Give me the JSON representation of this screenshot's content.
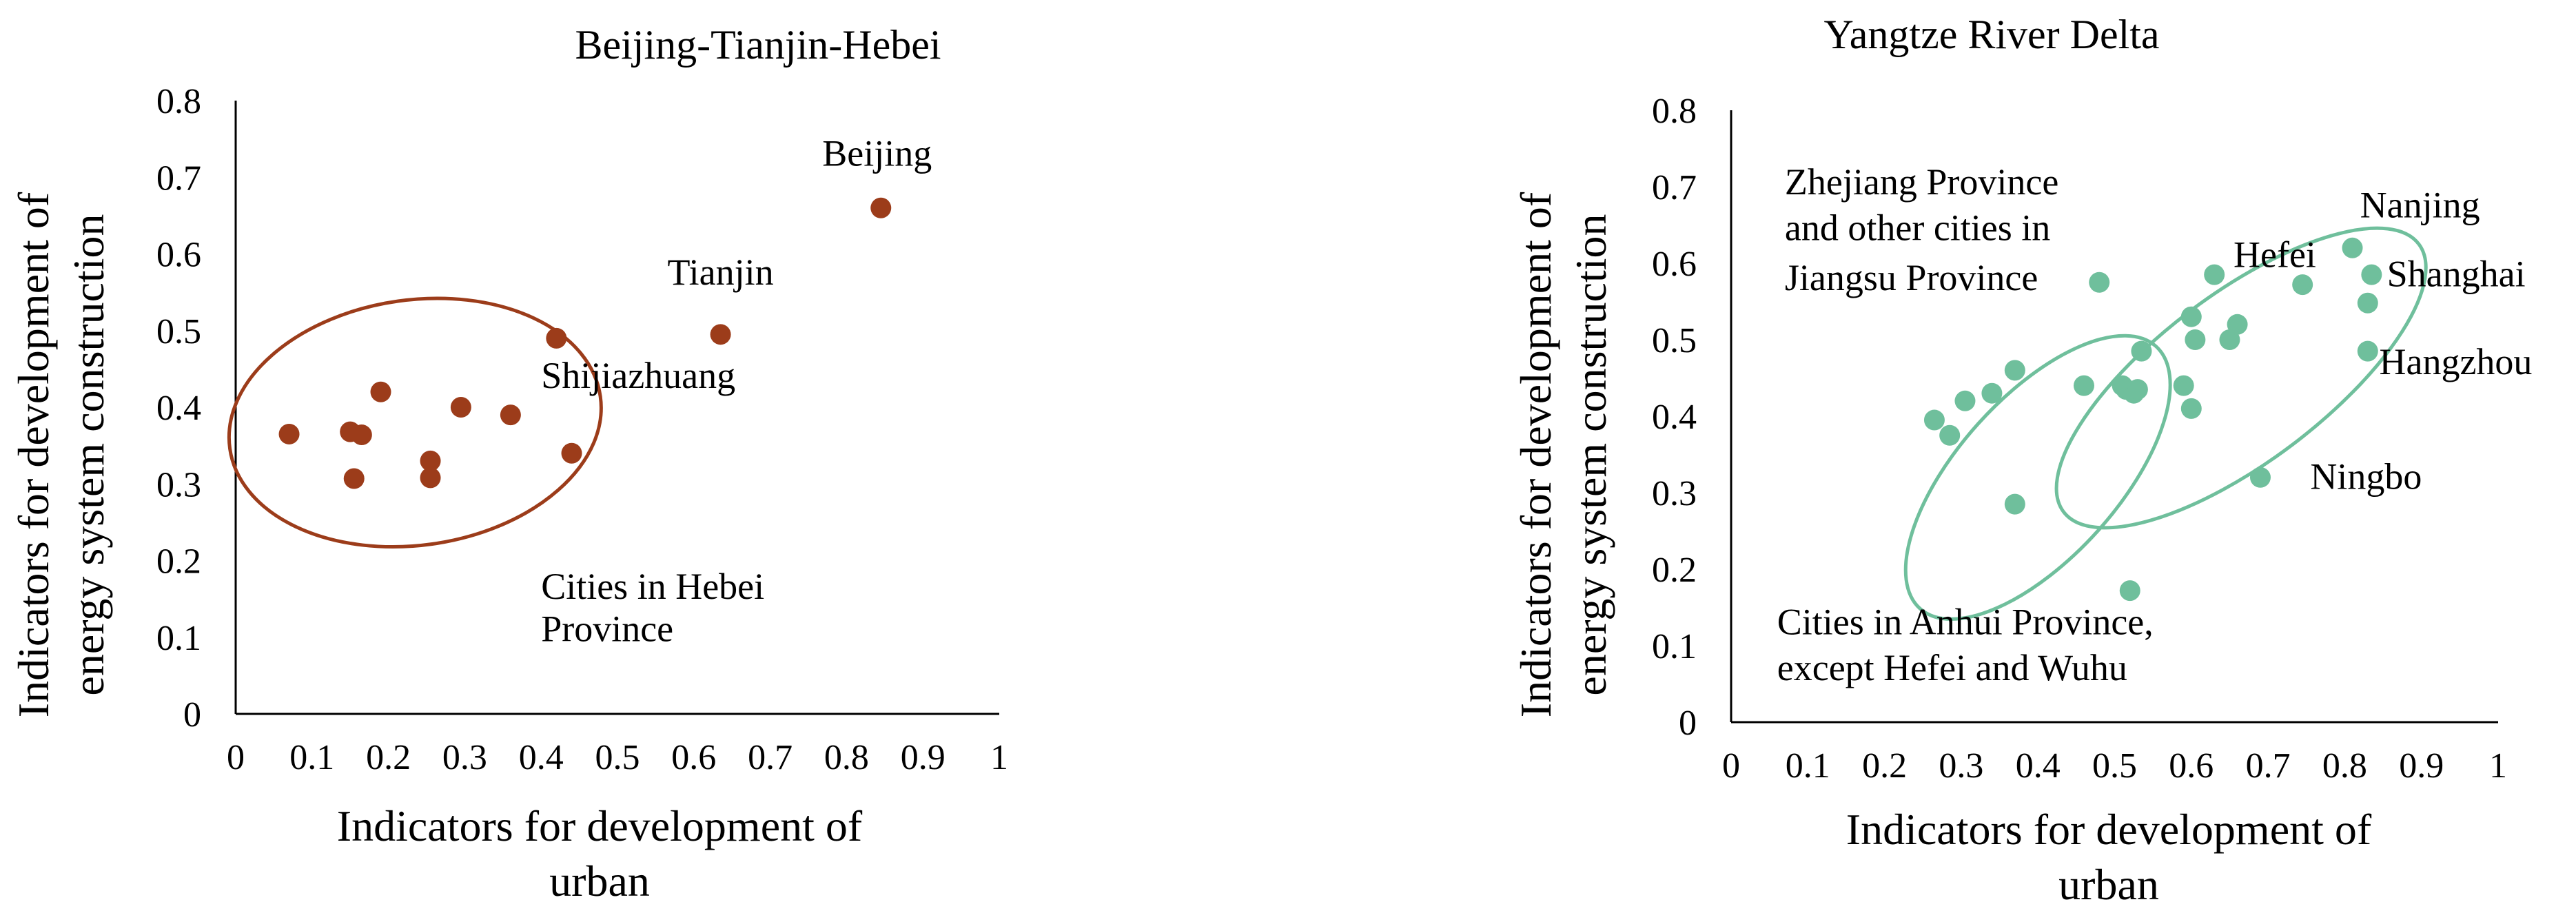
{
  "colors": {
    "left_points": "#9c3c1a",
    "left_ellipse": "#9c3c1a",
    "right_points": "#6fbf9c",
    "right_ellipse": "#6fbf9c",
    "axis": "#000000"
  },
  "chart_data": [
    {
      "type": "scatter",
      "title": "Beijing-Tianjin-Hebei",
      "xlabel": "Indicators for development of urban",
      "ylabel": "Indicators for development of energy system construction",
      "xlim": [
        0,
        1
      ],
      "ylim": [
        0,
        0.8
      ],
      "x_ticks": [
        "0",
        "0.1",
        "0.2",
        "0.3",
        "0.4",
        "0.5",
        "0.6",
        "0.7",
        "0.8",
        "0.9",
        "1"
      ],
      "y_ticks": [
        "0",
        "0.1",
        "0.2",
        "0.3",
        "0.4",
        "0.5",
        "0.6",
        "0.7",
        "0.8"
      ],
      "grid": false,
      "series": [
        {
          "points": [
            {
              "x": 0.07,
              "y": 0.365
            },
            {
              "x": 0.15,
              "y": 0.368
            },
            {
              "x": 0.165,
              "y": 0.364
            },
            {
              "x": 0.19,
              "y": 0.42
            },
            {
              "x": 0.155,
              "y": 0.307
            },
            {
              "x": 0.255,
              "y": 0.33
            },
            {
              "x": 0.255,
              "y": 0.308
            },
            {
              "x": 0.295,
              "y": 0.4
            },
            {
              "x": 0.36,
              "y": 0.39
            },
            {
              "x": 0.42,
              "y": 0.49
            },
            {
              "x": 0.44,
              "y": 0.34
            },
            {
              "x": 0.635,
              "y": 0.495
            },
            {
              "x": 0.845,
              "y": 0.66
            }
          ]
        }
      ],
      "annotations": [
        {
          "text": "Beijing",
          "x": 0.84,
          "y": 0.715
        },
        {
          "text": "Tianjin",
          "x": 0.635,
          "y": 0.56
        },
        {
          "text": "Shijiazhuang",
          "x": 0.4,
          "y": 0.425
        },
        {
          "text": "Cities in Hebei",
          "x": 0.4,
          "y": 0.15
        },
        {
          "text": "Province",
          "x": 0.4,
          "y": 0.095
        }
      ],
      "ellipses": [
        {
          "cx": 0.235,
          "cy": 0.38,
          "rx": 0.245,
          "ry": 0.16,
          "angle": -8
        }
      ]
    },
    {
      "type": "scatter",
      "title": "Yangtze River Delta",
      "xlabel": "Indicators for development of urban",
      "ylabel": "Indicators for development of energy system construction",
      "xlim": [
        0,
        1
      ],
      "ylim": [
        0,
        0.8
      ],
      "x_ticks": [
        "0",
        "0.1",
        "0.2",
        "0.3",
        "0.4",
        "0.5",
        "0.6",
        "0.7",
        "0.8",
        "0.9",
        "1"
      ],
      "y_ticks": [
        "0",
        "0.1",
        "0.2",
        "0.3",
        "0.4",
        "0.5",
        "0.6",
        "0.7",
        "0.8"
      ],
      "grid": false,
      "series": [
        {
          "points": [
            {
              "x": 0.265,
              "y": 0.395
            },
            {
              "x": 0.285,
              "y": 0.375
            },
            {
              "x": 0.305,
              "y": 0.42
            },
            {
              "x": 0.34,
              "y": 0.43
            },
            {
              "x": 0.37,
              "y": 0.46
            },
            {
              "x": 0.37,
              "y": 0.285
            },
            {
              "x": 0.46,
              "y": 0.44
            },
            {
              "x": 0.48,
              "y": 0.575
            },
            {
              "x": 0.51,
              "y": 0.44
            },
            {
              "x": 0.515,
              "y": 0.435
            },
            {
              "x": 0.525,
              "y": 0.43
            },
            {
              "x": 0.53,
              "y": 0.435
            },
            {
              "x": 0.535,
              "y": 0.485
            },
            {
              "x": 0.59,
              "y": 0.44
            },
            {
              "x": 0.6,
              "y": 0.41
            },
            {
              "x": 0.6,
              "y": 0.53
            },
            {
              "x": 0.605,
              "y": 0.5
            },
            {
              "x": 0.63,
              "y": 0.585
            },
            {
              "x": 0.65,
              "y": 0.5
            },
            {
              "x": 0.66,
              "y": 0.52
            },
            {
              "x": 0.52,
              "y": 0.172
            },
            {
              "x": 0.69,
              "y": 0.32
            },
            {
              "x": 0.745,
              "y": 0.572
            },
            {
              "x": 0.81,
              "y": 0.62
            },
            {
              "x": 0.835,
              "y": 0.585
            },
            {
              "x": 0.83,
              "y": 0.548
            },
            {
              "x": 0.83,
              "y": 0.485
            }
          ]
        }
      ],
      "annotations": [
        {
          "text": "Zhejiang Province",
          "x": 0.07,
          "y": 0.69
        },
        {
          "text": "and other cities in",
          "x": 0.07,
          "y": 0.63
        },
        {
          "text": "Jiangsu Province",
          "x": 0.07,
          "y": 0.565
        },
        {
          "text": "Hefei",
          "x": 0.655,
          "y": 0.595
        },
        {
          "text": "Nanjing",
          "x": 0.82,
          "y": 0.66
        },
        {
          "text": "Shanghai",
          "x": 0.855,
          "y": 0.57
        },
        {
          "text": "Hangzhou",
          "x": 0.845,
          "y": 0.455
        },
        {
          "text": "Ningbo",
          "x": 0.755,
          "y": 0.305
        },
        {
          "text": "Cities in Anhui Province,",
          "x": 0.06,
          "y": 0.115
        },
        {
          "text": "except Hefei and Wuhu",
          "x": 0.06,
          "y": 0.055
        }
      ],
      "ellipses": [
        {
          "cx": 0.4,
          "cy": 0.32,
          "rx": 0.23,
          "ry": 0.105,
          "angle": -48
        },
        {
          "cx": 0.665,
          "cy": 0.45,
          "rx": 0.29,
          "ry": 0.11,
          "angle": -37
        }
      ]
    }
  ]
}
